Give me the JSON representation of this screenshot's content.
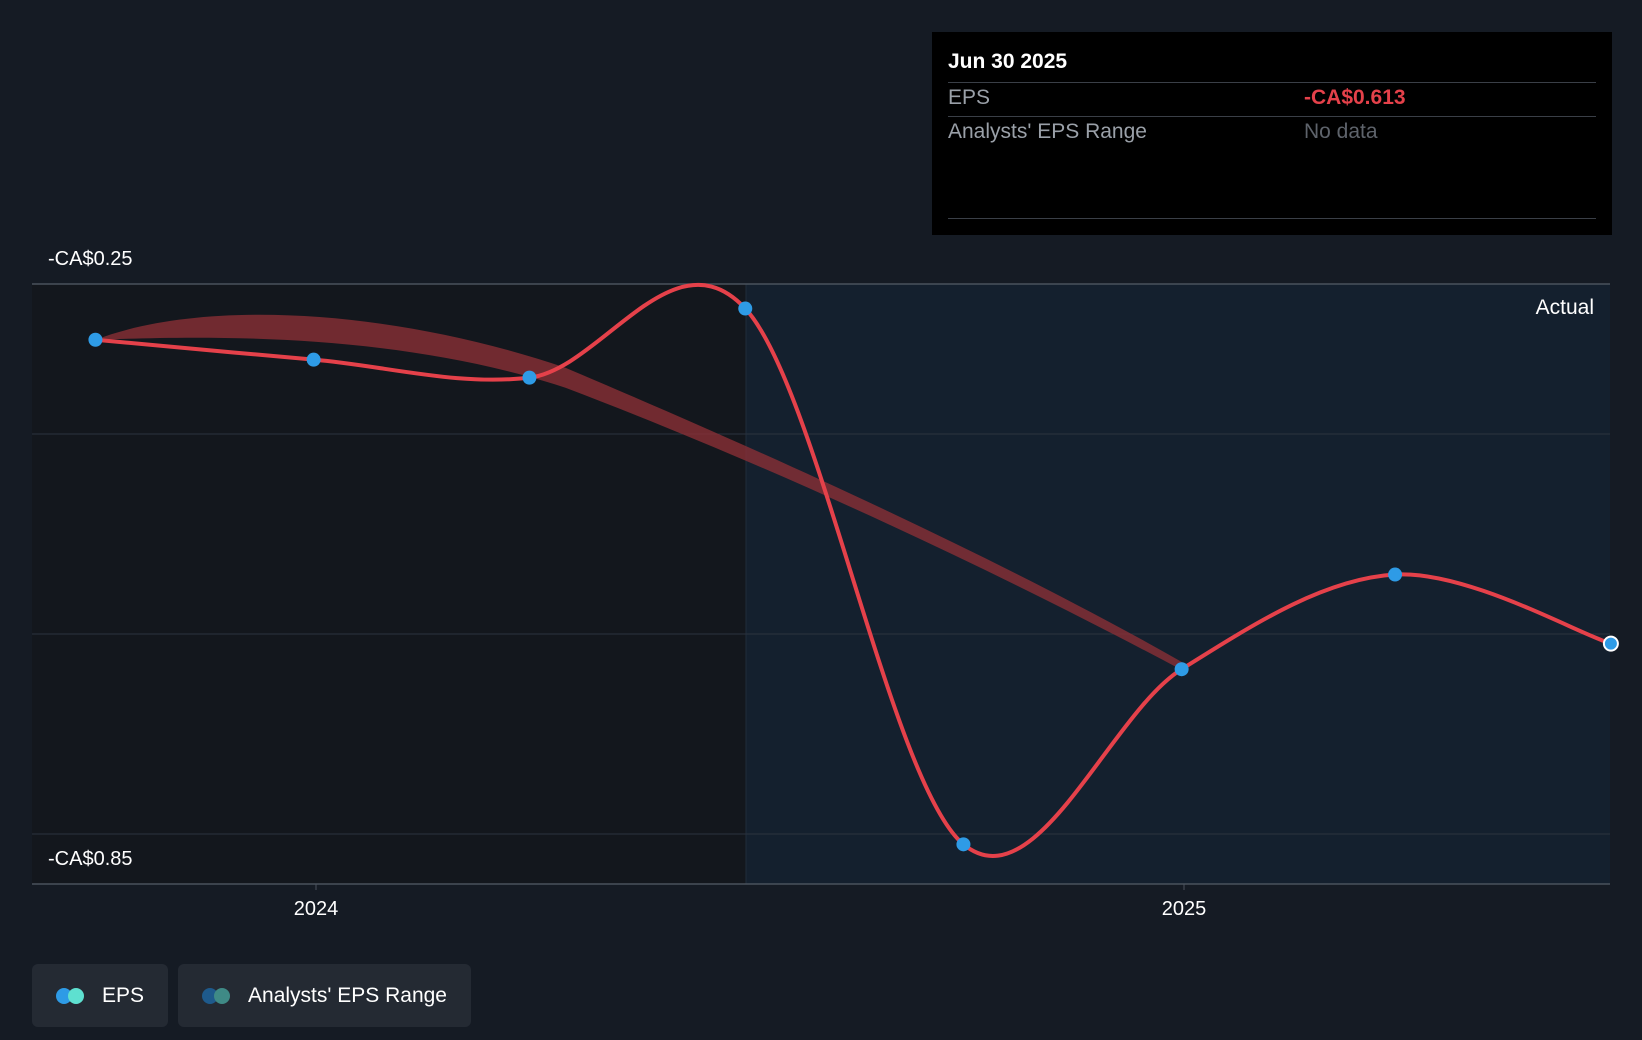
{
  "chart_data": {
    "type": "line",
    "y_tick_labels": [
      "-CA$0.25",
      "-CA$0.85"
    ],
    "ylim": [
      -0.85,
      -0.25
    ],
    "x_tick_labels": [
      "2024",
      "2025"
    ],
    "region_label": "Actual",
    "series": [
      {
        "name": "EPS",
        "color": "#e5414a",
        "points": [
          {
            "x": "2023-09-30",
            "y": -0.292
          },
          {
            "x": "2023-12-31",
            "y": -0.313
          },
          {
            "x": "2024-03-31",
            "y": -0.332
          },
          {
            "x": "2024-06-30",
            "y": -0.259
          },
          {
            "x": "2024-09-30",
            "y": -0.825
          },
          {
            "x": "2024-12-31",
            "y": -0.64
          },
          {
            "x": "2025-03-31",
            "y": -0.54
          },
          {
            "x": "2025-06-30",
            "y": -0.613
          }
        ]
      },
      {
        "name": "Analysts' EPS Range",
        "color": "#8c2f36",
        "points": [
          {
            "x": "2023-09-30",
            "y": -0.292
          },
          {
            "x": "2025-01-01",
            "y": -0.64
          }
        ]
      }
    ],
    "tooltip": {
      "date": "Jun 30 2025",
      "rows": [
        {
          "label": "EPS",
          "value": "-CA$0.613"
        },
        {
          "label": "Analysts' EPS Range",
          "value": "No data"
        }
      ]
    },
    "legend": [
      {
        "label": "EPS",
        "colors": [
          "#2e9be6",
          "#5ee0d0"
        ]
      },
      {
        "label": "Analysts' EPS Range",
        "colors": [
          "#1e5a8c",
          "#3f8a86"
        ]
      }
    ]
  }
}
